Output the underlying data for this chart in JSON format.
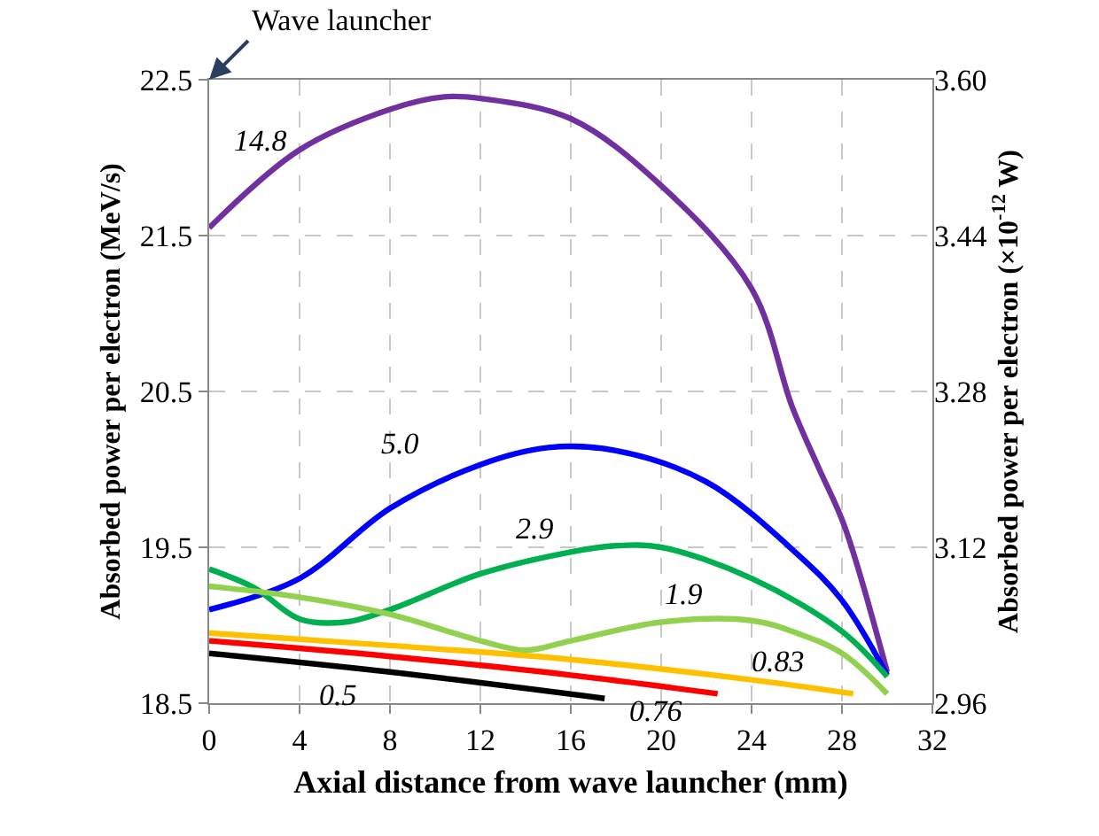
{
  "chart_data": {
    "type": "line",
    "xlabel": "Axial distance from wave launcher (mm)",
    "ylabel": "Absorbed power per electron (MeV/s)",
    "y2label": "Absorbed power per electron (×10$^{-12}$ W)",
    "xlim": [
      0,
      32
    ],
    "xticks": [
      0,
      4,
      8,
      12,
      16,
      20,
      24,
      28,
      32
    ],
    "ylim": [
      18.5,
      22.5
    ],
    "yticks": [
      18.5,
      19.5,
      20.5,
      21.5,
      22.5
    ],
    "y2lim": [
      2.96,
      3.6
    ],
    "y2ticks": [
      2.96,
      3.12,
      3.28,
      3.44,
      {
        "value": 3.6,
        "label": "3.60"
      }
    ],
    "grid": true,
    "legend": false,
    "marker": "none",
    "line_style": "solid",
    "series": [
      {
        "name": "14.8",
        "color": "#7030a0",
        "x": [
          0,
          4,
          8,
          10.4,
          12,
          16,
          20,
          24,
          25.8,
          27,
          28.1,
          30
        ],
        "values": [
          21.55,
          22.05,
          22.31,
          22.39,
          22.38,
          22.25,
          21.82,
          21.16,
          20.4,
          20.0,
          19.64,
          18.7
        ]
      },
      {
        "name": "5.0",
        "color": "#0000ff",
        "x": [
          0,
          4,
          8,
          12,
          15,
          18,
          22,
          26,
          28,
          30
        ],
        "values": [
          19.1,
          19.3,
          19.75,
          20.03,
          20.14,
          20.12,
          19.92,
          19.46,
          19.16,
          18.68
        ]
      },
      {
        "name": "2.9",
        "color": "#00b050",
        "x": [
          0,
          2,
          4,
          6,
          8,
          12,
          16,
          18,
          20,
          24,
          28,
          30
        ],
        "values": [
          19.36,
          19.24,
          19.04,
          19.02,
          19.1,
          19.33,
          19.47,
          19.51,
          19.5,
          19.3,
          18.96,
          18.67
        ]
      },
      {
        "name": "1.9",
        "color": "#92d050",
        "x": [
          0,
          4,
          8,
          12,
          14,
          16,
          20,
          24,
          26,
          28,
          30
        ],
        "values": [
          19.25,
          19.18,
          19.07,
          18.9,
          18.84,
          18.9,
          19.02,
          19.03,
          18.95,
          18.82,
          18.56
        ]
      },
      {
        "name": "0.83",
        "color": "#ffc000",
        "x": [
          0,
          8,
          16,
          24,
          28.5
        ],
        "values": [
          18.95,
          18.87,
          18.78,
          18.65,
          18.56
        ]
      },
      {
        "name": "0.76",
        "color": "#ff0000",
        "x": [
          0,
          8,
          16,
          22.5
        ],
        "values": [
          18.9,
          18.8,
          18.68,
          18.56
        ]
      },
      {
        "name": "0.5",
        "color": "#000000",
        "x": [
          0,
          8,
          17.5
        ],
        "values": [
          18.82,
          18.7,
          18.53
        ]
      }
    ],
    "annotations": [
      "Wave launcher"
    ]
  }
}
